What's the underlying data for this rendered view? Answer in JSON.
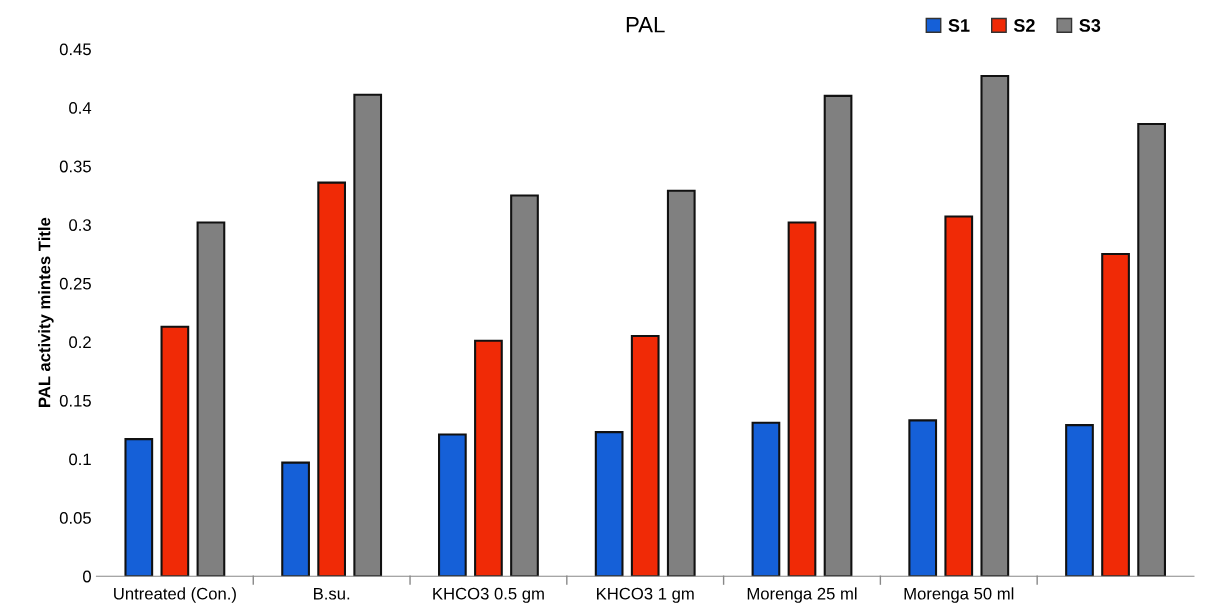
{
  "chart_data": {
    "type": "bar",
    "title": "PAL",
    "ylabel": "PAL activity mintes Title",
    "categories": [
      "Untreated (Con.)",
      "B.su.",
      "KHCO3 0.5 gm",
      "KHCO3 1 gm",
      "Morenga 25 ml",
      "Morenga 50 ml",
      null
    ],
    "series": [
      {
        "name": "S1",
        "color": "#1560d8",
        "values": [
          0.117,
          0.097,
          0.121,
          0.123,
          0.131,
          0.133,
          0.129
        ]
      },
      {
        "name": "S2",
        "color": "#f02a06",
        "values": [
          0.213,
          0.336,
          0.201,
          0.205,
          0.302,
          0.307,
          0.275
        ]
      },
      {
        "name": "S3",
        "color": "#808080",
        "values": [
          0.302,
          0.411,
          0.325,
          0.329,
          0.41,
          0.427,
          0.386
        ]
      }
    ],
    "ylim": [
      0,
      0.45
    ],
    "yticks": [
      0,
      0.05,
      0.1,
      0.15,
      0.2,
      0.25,
      0.3,
      0.35,
      0.4,
      0.45
    ],
    "grid": false,
    "legend": "top right"
  }
}
